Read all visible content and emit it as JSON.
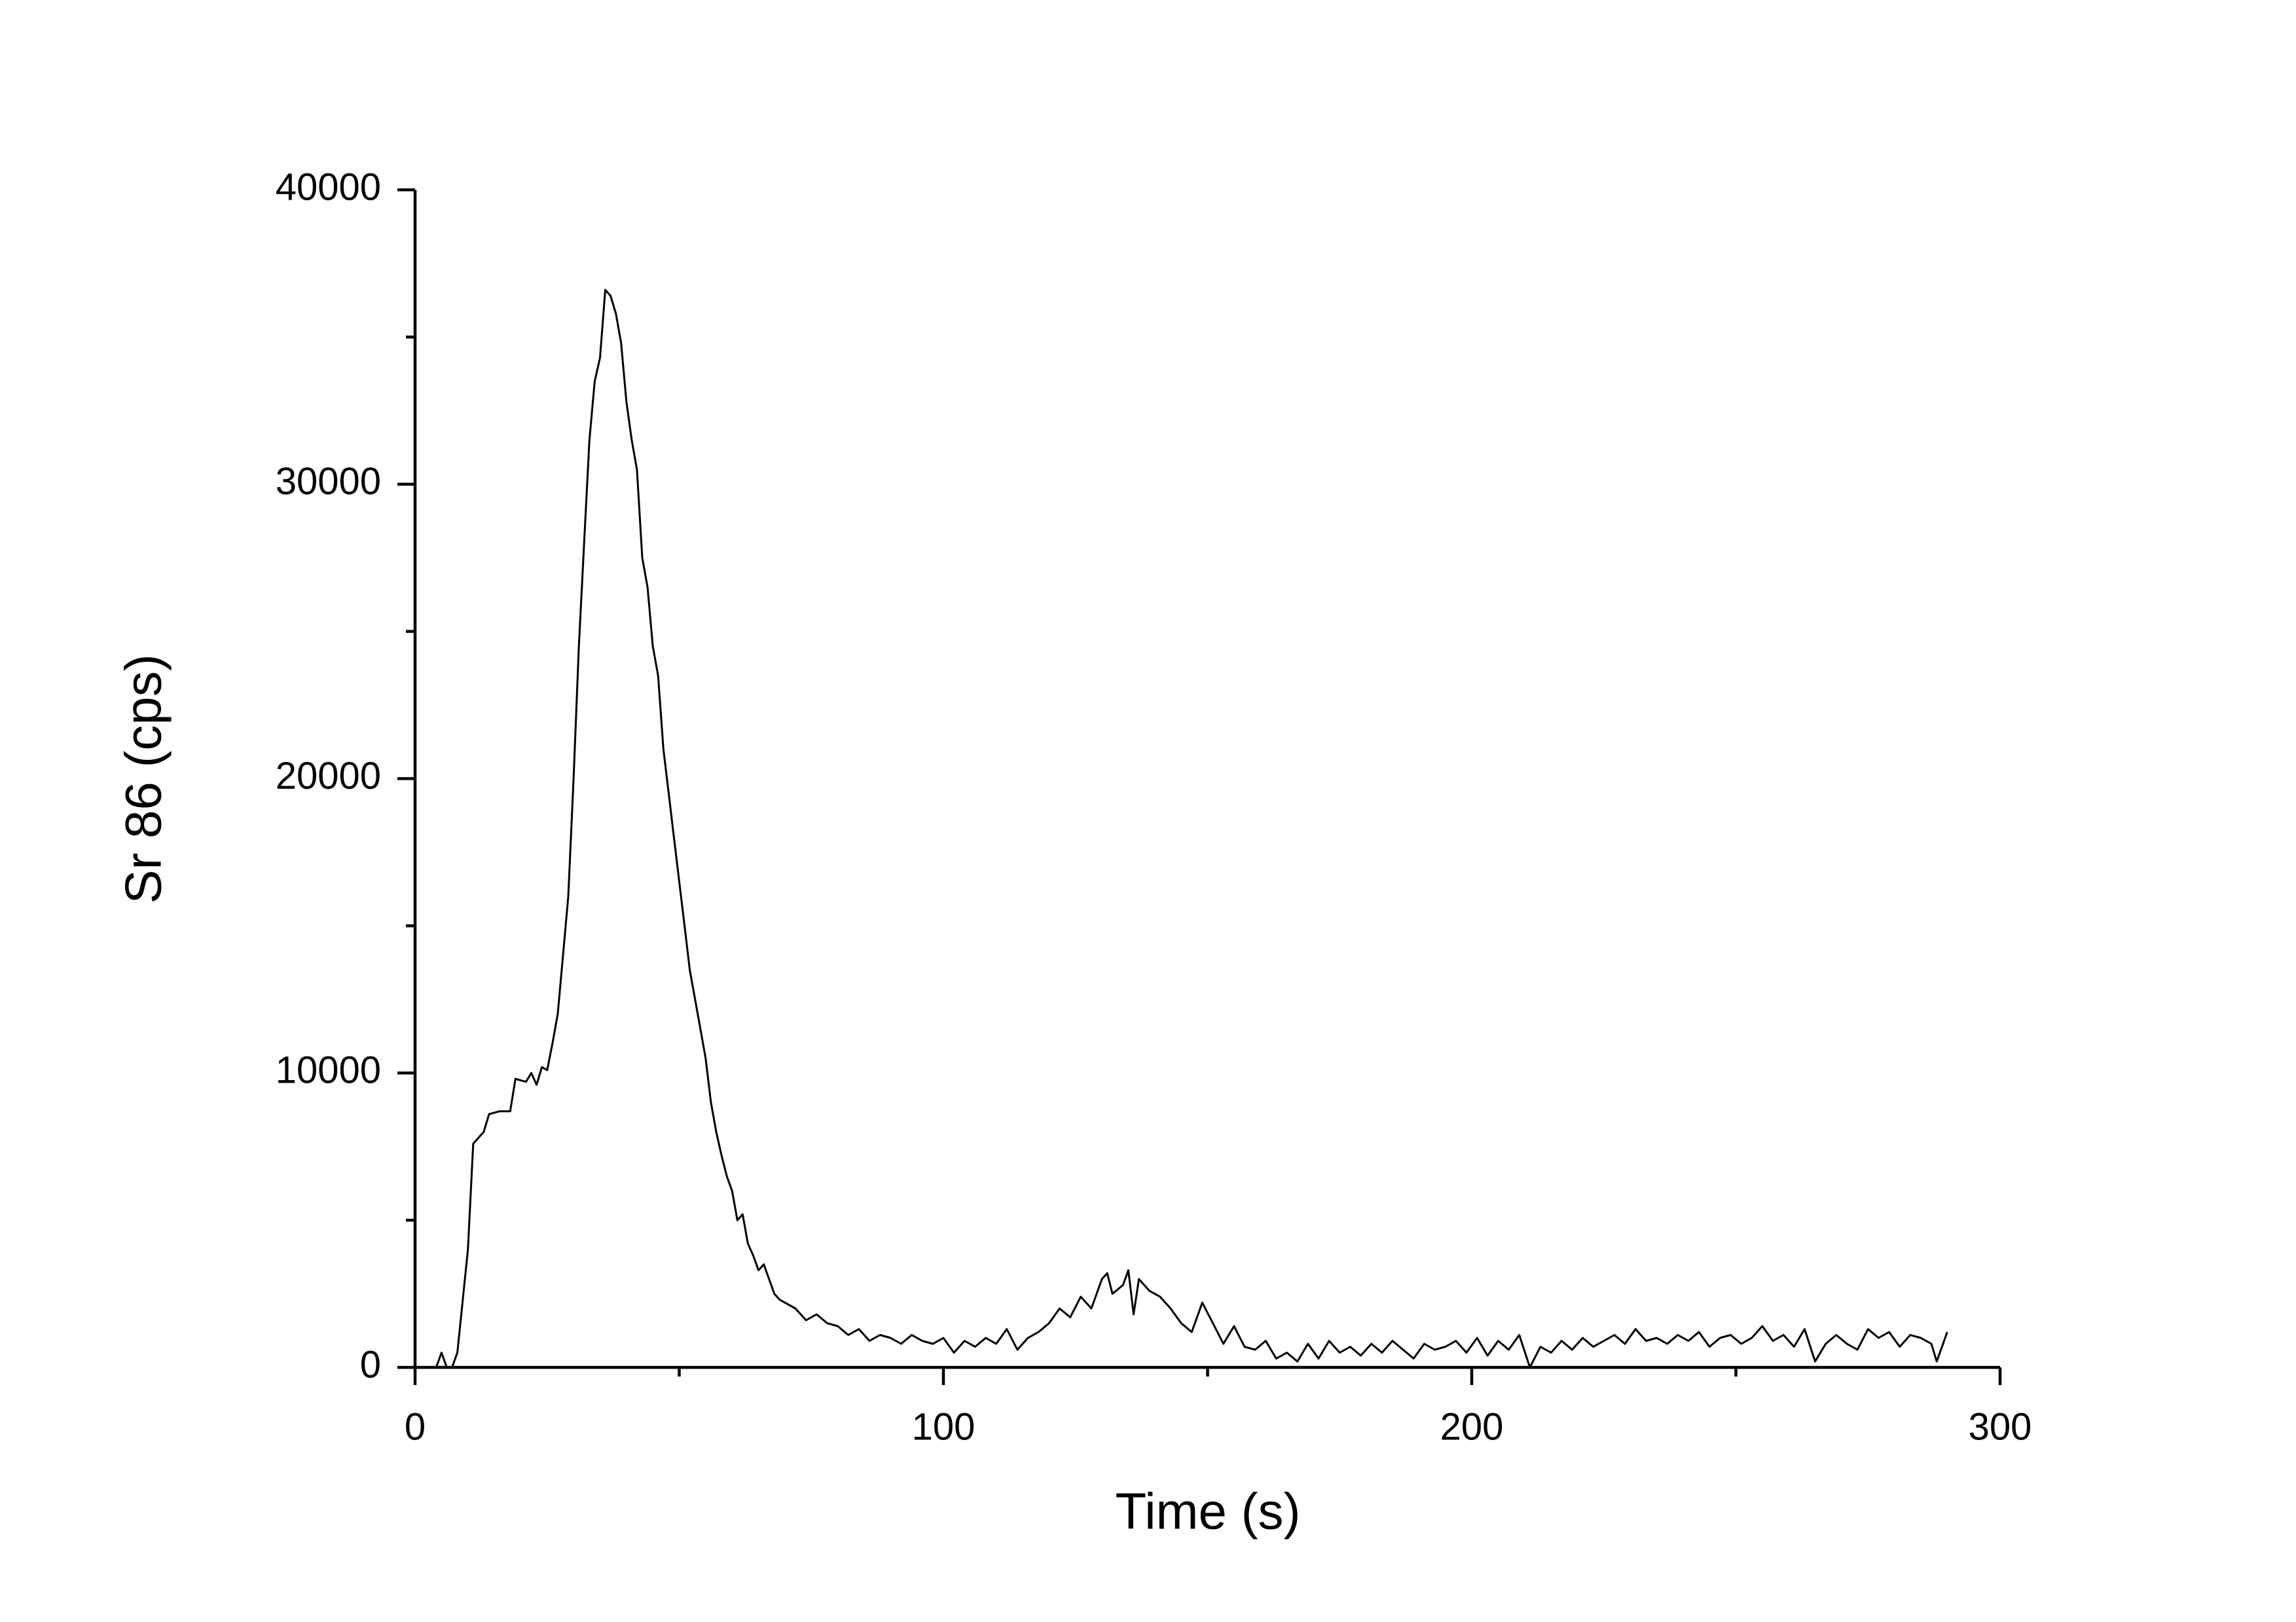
{
  "chart_data": {
    "type": "line",
    "xlabel": "Time (s)",
    "ylabel": "Sr 86 (cps)",
    "xlim": [
      0,
      300
    ],
    "xticks": [
      0,
      100,
      200,
      300
    ],
    "xminorticks": [
      50,
      150,
      250
    ],
    "ylim": [
      0,
      40000
    ],
    "yticks": [
      0,
      10000,
      20000,
      30000,
      40000
    ],
    "yminorticks": [
      5000,
      15000,
      25000,
      35000
    ],
    "series": [
      {
        "color": "#000000",
        "x": [
          4,
          5,
          6,
          7,
          8,
          10,
          11,
          13,
          14,
          16,
          18,
          19,
          21,
          22,
          23,
          24,
          25,
          26,
          27,
          28,
          29,
          30,
          31,
          32,
          33,
          34,
          35,
          36,
          37,
          38,
          39,
          40,
          41,
          42,
          43,
          44,
          45,
          46,
          47,
          48,
          49,
          50,
          51,
          52,
          53,
          54,
          55,
          56,
          57,
          58,
          59,
          60,
          61,
          62,
          63,
          64,
          65,
          66,
          67,
          68,
          69,
          70,
          72,
          74,
          76,
          78,
          80,
          82,
          84,
          86,
          88,
          90,
          92,
          94,
          96,
          98,
          100,
          102,
          104,
          106,
          108,
          110,
          112,
          114,
          116,
          118,
          120,
          122,
          124,
          126,
          128,
          130,
          131,
          132,
          134,
          135,
          136,
          137,
          139,
          141,
          143,
          145,
          147,
          149,
          151,
          153,
          155,
          157,
          159,
          161,
          163,
          165,
          167,
          169,
          171,
          173,
          175,
          177,
          179,
          181,
          183,
          185,
          187,
          189,
          191,
          193,
          195,
          197,
          199,
          201,
          203,
          205,
          207,
          209,
          211,
          213,
          215,
          217,
          219,
          221,
          223,
          225,
          227,
          229,
          231,
          233,
          235,
          237,
          239,
          241,
          243,
          245,
          247,
          249,
          251,
          253,
          255,
          257,
          259,
          261,
          263,
          265,
          267,
          269,
          271,
          273,
          275,
          277,
          279,
          281,
          283,
          285,
          287,
          288,
          290
        ],
        "values": [
          0,
          500,
          0,
          0,
          500,
          4000,
          7600,
          8000,
          8600,
          8700,
          8700,
          9800,
          9700,
          10000,
          9600,
          10200,
          10100,
          11000,
          12000,
          14000,
          16000,
          20000,
          24500,
          28000,
          31500,
          33500,
          34300,
          36600,
          36400,
          35800,
          34800,
          32800,
          31500,
          30500,
          27500,
          26500,
          24500,
          23500,
          21000,
          19500,
          18000,
          16500,
          15000,
          13500,
          12500,
          11500,
          10500,
          9000,
          8000,
          7200,
          6500,
          6000,
          5000,
          5200,
          4200,
          3800,
          3300,
          3500,
          3000,
          2500,
          2300,
          2200,
          2000,
          1600,
          1800,
          1500,
          1400,
          1100,
          1300,
          900,
          1100,
          1000,
          800,
          1100,
          900,
          800,
          1000,
          500,
          900,
          700,
          1000,
          800,
          1300,
          600,
          1000,
          1200,
          1500,
          2000,
          1700,
          2400,
          2000,
          3000,
          3200,
          2500,
          2800,
          3300,
          1800,
          3000,
          2600,
          2400,
          2000,
          1500,
          1200,
          2200,
          1500,
          800,
          1400,
          700,
          600,
          900,
          300,
          500,
          200,
          800,
          300,
          900,
          500,
          700,
          400,
          800,
          500,
          900,
          600,
          300,
          800,
          600,
          700,
          900,
          500,
          1000,
          400,
          900,
          600,
          1100,
          0,
          700,
          500,
          900,
          600,
          1000,
          700,
          900,
          1100,
          800,
          1300,
          900,
          1000,
          800,
          1100,
          900,
          1200,
          700,
          1000,
          1100,
          800,
          1000,
          1400,
          900,
          1100,
          700,
          1300,
          200,
          800,
          1100,
          800,
          600,
          1300,
          1000,
          1200,
          700,
          1100,
          1000,
          800,
          200,
          1200
        ]
      }
    ]
  }
}
